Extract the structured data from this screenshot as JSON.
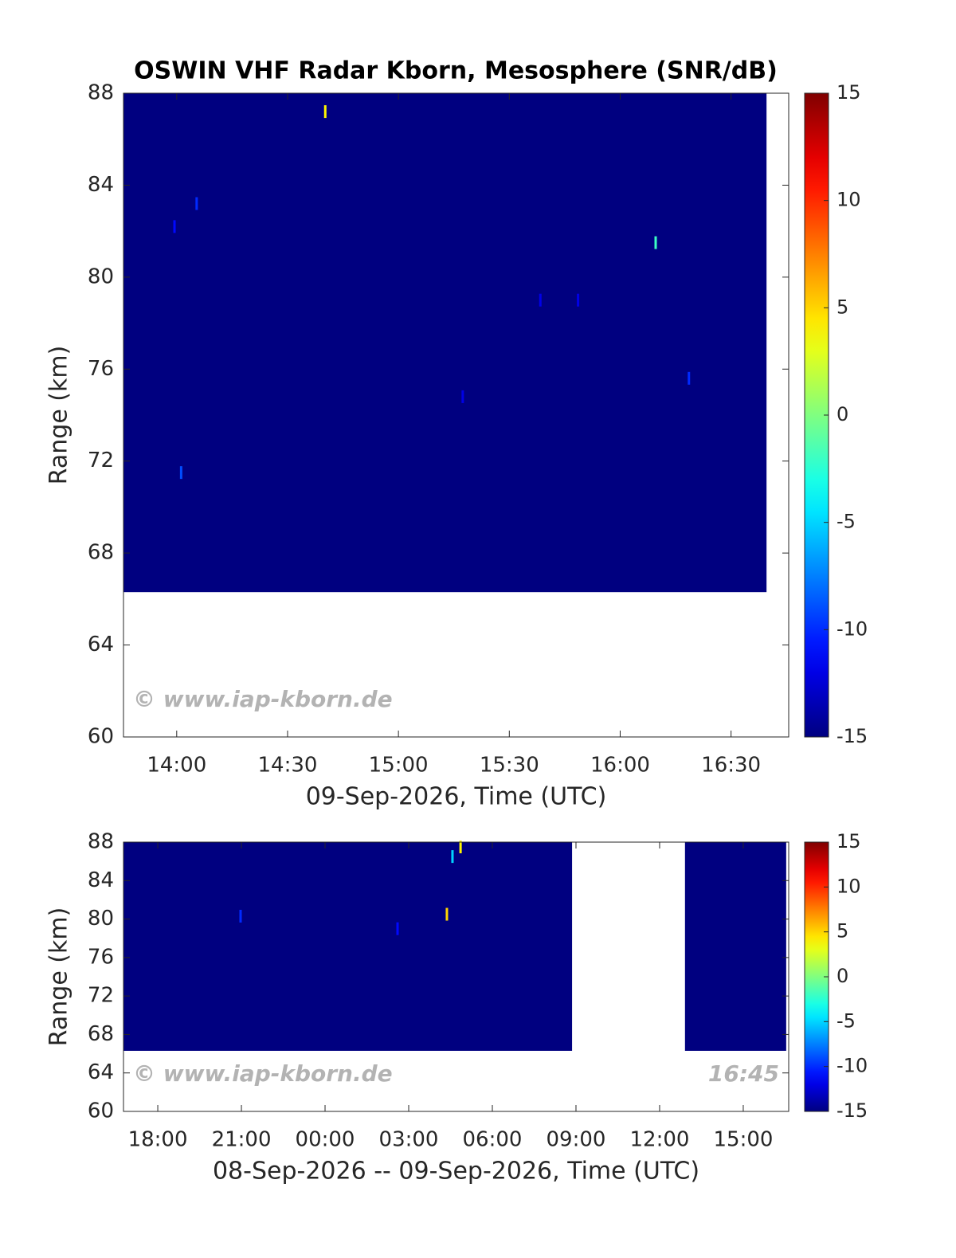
{
  "chart_data": [
    {
      "type": "heatmap",
      "title": "OSWIN VHF Radar Kborn, Mesosphere (SNR/dB)",
      "xlabel": "09-Sep-2026, Time (UTC)",
      "ylabel": "Range (km)",
      "xlim": [
        13.76,
        16.76
      ],
      "ylim": [
        60,
        88
      ],
      "clim": [
        -15,
        15
      ],
      "colormap": "jet",
      "xticks": [
        {
          "value": 14,
          "label": "14:00"
        },
        {
          "value": 14.5,
          "label": "14:30"
        },
        {
          "value": 15,
          "label": "15:00"
        },
        {
          "value": 15.5,
          "label": "15:30"
        },
        {
          "value": 16,
          "label": "16:00"
        },
        {
          "value": 16.5,
          "label": "16:30"
        }
      ],
      "yticks": [
        60,
        64,
        68,
        72,
        76,
        80,
        84,
        88
      ],
      "cticks": [
        -15,
        -10,
        -5,
        0,
        5,
        10,
        15
      ],
      "segments": [
        {
          "x": [
            13.76,
            16.66
          ],
          "y": [
            66.3,
            88
          ],
          "value": -15
        }
      ],
      "points": [
        {
          "x": 14.67,
          "y": 87.2,
          "value": 4
        },
        {
          "x": 16.16,
          "y": 81.5,
          "value": -2
        },
        {
          "x": 16.31,
          "y": 75.6,
          "value": -10
        },
        {
          "x": 14.09,
          "y": 83.2,
          "value": -10
        },
        {
          "x": 14.02,
          "y": 71.5,
          "value": -9
        },
        {
          "x": 13.99,
          "y": 82.2,
          "value": -11
        },
        {
          "x": 15.29,
          "y": 74.8,
          "value": -12
        },
        {
          "x": 15.64,
          "y": 79.0,
          "value": -12
        },
        {
          "x": 15.81,
          "y": 79.0,
          "value": -12
        }
      ],
      "watermark": "© www.iap-kborn.de"
    },
    {
      "type": "heatmap",
      "xlabel": "08-Sep-2026 -- 09-Sep-2026, Time (UTC)",
      "ylabel": "Range (km)",
      "xlim": [
        16.77,
        40.63
      ],
      "ylim": [
        60,
        88
      ],
      "clim": [
        -15,
        15
      ],
      "colormap": "jet",
      "xticks": [
        {
          "value": 18,
          "label": "18:00"
        },
        {
          "value": 21,
          "label": "21:00"
        },
        {
          "value": 24,
          "label": "00:00"
        },
        {
          "value": 27,
          "label": "03:00"
        },
        {
          "value": 30,
          "label": "06:00"
        },
        {
          "value": 33,
          "label": "09:00"
        },
        {
          "value": 36,
          "label": "12:00"
        },
        {
          "value": 39,
          "label": "15:00"
        }
      ],
      "yticks": [
        60,
        64,
        68,
        72,
        76,
        80,
        84,
        88
      ],
      "cticks": [
        -15,
        -10,
        -5,
        0,
        5,
        10,
        15
      ],
      "segments": [
        {
          "x": [
            16.77,
            32.86
          ],
          "y": [
            66.3,
            88
          ],
          "value": -15
        },
        {
          "x": 36.91,
          "y": [
            66.3,
            88
          ],
          "value": -15,
          "x2": 40.54
        }
      ],
      "points": [
        {
          "x": 28.57,
          "y": 86.5,
          "value": -5
        },
        {
          "x": 28.86,
          "y": 87.5,
          "value": 4
        },
        {
          "x": 28.37,
          "y": 80.5,
          "value": 5
        },
        {
          "x": 20.97,
          "y": 80.3,
          "value": -10
        },
        {
          "x": 26.6,
          "y": 79.0,
          "value": -11
        }
      ],
      "watermark": "© www.iap-kborn.de",
      "timestamp": "16:45"
    }
  ]
}
